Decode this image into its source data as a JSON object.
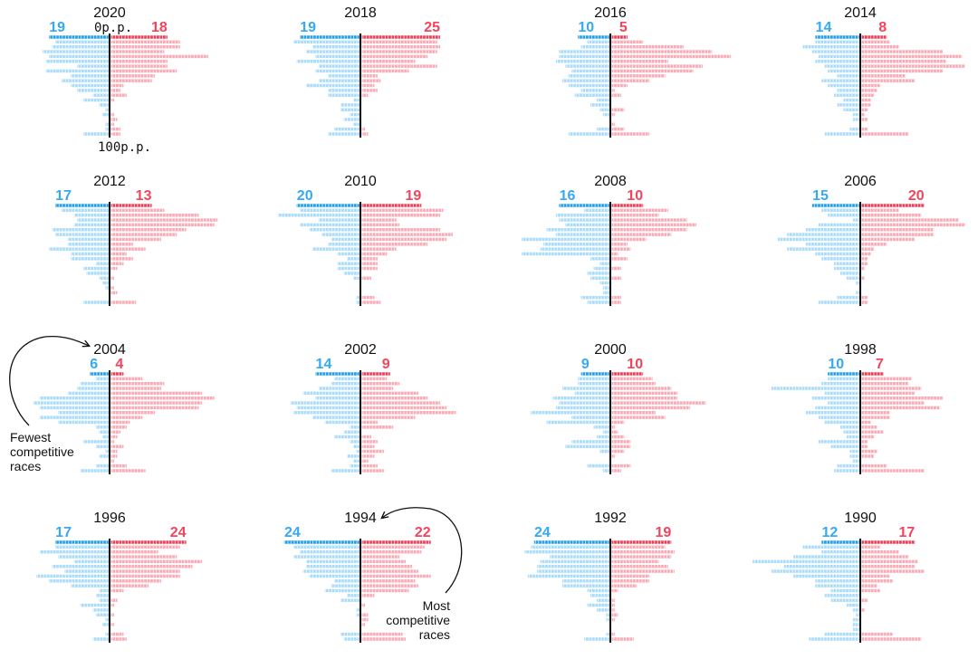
{
  "chart_data": {
    "type": "bar",
    "subtype": "small-multiple mirrored unit bar charts",
    "axis_labels": {
      "top": "0p.p.",
      "bottom": "100p.p."
    },
    "colors": {
      "left_top": "#1fa0f0",
      "left": "#a9dcfb",
      "right_top": "#f23d55",
      "right": "#f9aab5",
      "axis": "#111111"
    },
    "annotations": [
      {
        "text_lines": [
          "Fewest",
          "competitive",
          "races"
        ],
        "target": "2004"
      },
      {
        "text_lines": [
          "Most",
          "competitive",
          "races"
        ],
        "target": "1994"
      }
    ],
    "panels": [
      {
        "year": "2020",
        "left": [
          19,
          17,
          18,
          21,
          19,
          20,
          10,
          20,
          12,
          15,
          12,
          10,
          5,
          8,
          3,
          1,
          2,
          0,
          1,
          1,
          8
        ],
        "right": [
          18,
          22,
          22,
          17,
          31,
          18,
          18,
          21,
          14,
          13,
          4,
          3,
          5,
          1,
          0,
          0,
          1,
          2,
          1,
          3,
          3
        ]
      },
      {
        "year": "2018",
        "left": [
          19,
          21,
          15,
          17,
          14,
          20,
          13,
          14,
          10,
          13,
          17,
          10,
          10,
          2,
          6,
          6,
          3,
          5,
          2,
          8,
          10
        ],
        "right": [
          25,
          24,
          25,
          24,
          21,
          17,
          24,
          15,
          5,
          6,
          4,
          5,
          2,
          0,
          0,
          0,
          0,
          0,
          0,
          1,
          2
        ]
      },
      {
        "year": "2016",
        "left": [
          10,
          7,
          9,
          16,
          16,
          17,
          14,
          12,
          13,
          15,
          13,
          9,
          11,
          4,
          6,
          3,
          2,
          0,
          0,
          4,
          13
        ],
        "right": [
          5,
          10,
          23,
          32,
          38,
          18,
          29,
          26,
          17,
          12,
          5,
          1,
          3,
          0,
          0,
          4,
          1,
          0,
          1,
          4,
          12
        ]
      },
      {
        "year": "2014",
        "left": [
          14,
          14,
          18,
          15,
          13,
          14,
          11,
          10,
          7,
          12,
          10,
          7,
          8,
          5,
          7,
          5,
          2,
          2,
          0,
          3,
          11
        ],
        "right": [
          8,
          9,
          12,
          26,
          32,
          27,
          33,
          26,
          14,
          17,
          6,
          5,
          4,
          3,
          3,
          2,
          1,
          2,
          0,
          2,
          15
        ]
      },
      {
        "year": "2012",
        "left": [
          17,
          15,
          11,
          10,
          11,
          18,
          17,
          13,
          13,
          19,
          12,
          12,
          4,
          8,
          7,
          3,
          2,
          1,
          0,
          0,
          8
        ],
        "right": [
          13,
          17,
          28,
          34,
          33,
          24,
          21,
          16,
          7,
          11,
          5,
          7,
          4,
          2,
          0,
          1,
          0,
          1,
          2,
          0,
          8
        ]
      },
      {
        "year": "2010",
        "left": [
          20,
          19,
          26,
          13,
          19,
          16,
          12,
          9,
          10,
          15,
          7,
          4,
          7,
          7,
          5,
          2,
          0,
          0,
          0,
          1,
          1
        ],
        "right": [
          19,
          26,
          25,
          11,
          12,
          25,
          29,
          27,
          21,
          11,
          8,
          5,
          5,
          5,
          0,
          3,
          0,
          0,
          0,
          4,
          6
        ]
      },
      {
        "year": "2008",
        "left": [
          16,
          8,
          17,
          16,
          14,
          20,
          17,
          28,
          21,
          22,
          28,
          6,
          3,
          5,
          7,
          6,
          3,
          2,
          2,
          9,
          7
        ],
        "right": [
          10,
          18,
          15,
          24,
          27,
          24,
          19,
          11,
          5,
          6,
          2,
          5,
          0,
          3,
          0,
          3,
          0,
          0,
          0,
          3,
          3
        ]
      },
      {
        "year": "2006",
        "left": [
          15,
          12,
          10,
          2,
          13,
          17,
          23,
          26,
          17,
          23,
          14,
          12,
          8,
          8,
          6,
          4,
          1,
          0,
          1,
          7,
          13
        ],
        "right": [
          20,
          12,
          19,
          31,
          33,
          23,
          23,
          17,
          8,
          4,
          3,
          2,
          2,
          1,
          0,
          1,
          0,
          0,
          0,
          2,
          2
        ]
      },
      {
        "year": "2004",
        "left": [
          6,
          4,
          9,
          10,
          13,
          22,
          24,
          22,
          16,
          22,
          16,
          4,
          3,
          2,
          8,
          4,
          1,
          3,
          0,
          4,
          9
        ],
        "right": [
          4,
          10,
          17,
          16,
          29,
          33,
          29,
          28,
          14,
          10,
          6,
          5,
          3,
          2,
          1,
          4,
          2,
          2,
          1,
          5,
          11
        ]
      },
      {
        "year": "2002",
        "left": [
          14,
          8,
          9,
          13,
          18,
          14,
          22,
          20,
          21,
          15,
          11,
          3,
          5,
          8,
          3,
          2,
          1,
          4,
          2,
          3,
          9
        ],
        "right": [
          9,
          8,
          12,
          10,
          18,
          21,
          25,
          27,
          30,
          17,
          5,
          10,
          0,
          3,
          5,
          4,
          7,
          4,
          2,
          5,
          7
        ]
      },
      {
        "year": "2000",
        "left": [
          9,
          10,
          10,
          15,
          11,
          18,
          16,
          17,
          25,
          12,
          20,
          5,
          2,
          4,
          12,
          14,
          3,
          0,
          0,
          7,
          2
        ],
        "right": [
          10,
          13,
          14,
          19,
          21,
          21,
          30,
          25,
          14,
          17,
          4,
          1,
          2,
          4,
          6,
          6,
          4,
          1,
          0,
          6,
          3
        ]
      },
      {
        "year": "1998",
        "left": [
          10,
          10,
          12,
          28,
          11,
          15,
          10,
          14,
          17,
          13,
          11,
          6,
          5,
          4,
          13,
          9,
          3,
          3,
          2,
          7,
          8
        ],
        "right": [
          7,
          16,
          15,
          19,
          17,
          26,
          20,
          25,
          9,
          9,
          3,
          5,
          7,
          4,
          2,
          2,
          5,
          4,
          0,
          8,
          20
        ]
      },
      {
        "year": "1996",
        "left": [
          17,
          17,
          22,
          16,
          11,
          18,
          14,
          23,
          19,
          12,
          3,
          4,
          3,
          9,
          5,
          4,
          1,
          2,
          0,
          1,
          5
        ],
        "right": [
          24,
          22,
          15,
          21,
          29,
          26,
          22,
          22,
          16,
          12,
          4,
          0,
          2,
          1,
          0,
          1,
          0,
          1,
          0,
          4,
          5
        ]
      },
      {
        "year": "1994",
        "left": [
          24,
          21,
          19,
          21,
          17,
          17,
          18,
          16,
          8,
          9,
          11,
          4,
          6,
          0,
          1,
          1,
          0,
          0,
          0,
          6,
          5
        ],
        "right": [
          22,
          20,
          19,
          12,
          14,
          16,
          18,
          22,
          17,
          18,
          15,
          4,
          0,
          1,
          0,
          2,
          2,
          1,
          0,
          13,
          14
        ]
      },
      {
        "year": "1992",
        "left": [
          24,
          25,
          27,
          19,
          22,
          23,
          23,
          26,
          15,
          15,
          7,
          6,
          4,
          7,
          4,
          1,
          1,
          0,
          0,
          1,
          8
        ],
        "right": [
          19,
          17,
          20,
          19,
          15,
          18,
          20,
          12,
          12,
          8,
          2,
          0,
          1,
          1,
          1,
          2,
          1,
          0,
          0,
          1,
          7
        ]
      },
      {
        "year": "1990",
        "left": [
          12,
          18,
          12,
          21,
          34,
          24,
          28,
          21,
          14,
          14,
          9,
          11,
          9,
          4,
          2,
          1,
          2,
          2,
          2,
          11,
          16
        ],
        "right": [
          17,
          6,
          12,
          15,
          18,
          17,
          20,
          9,
          10,
          5,
          6,
          0,
          2,
          0,
          1,
          0,
          0,
          0,
          0,
          10,
          19
        ]
      }
    ]
  }
}
